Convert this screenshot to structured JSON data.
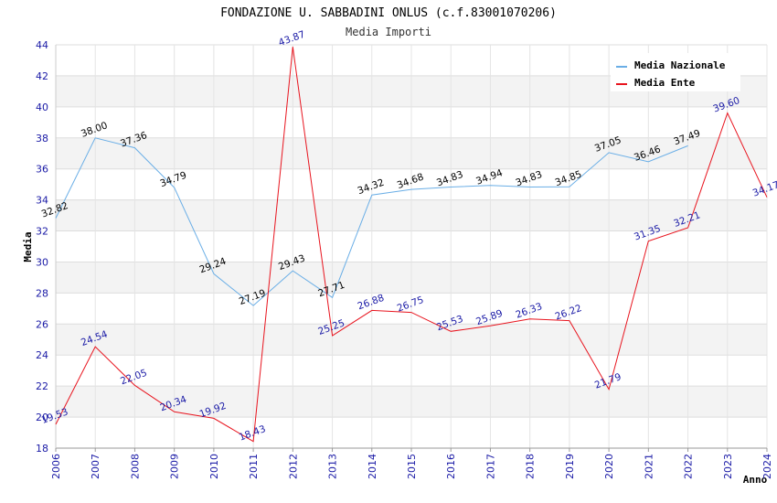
{
  "chart_data": {
    "type": "line",
    "title": "FONDAZIONE U. SABBADINI ONLUS (c.f.83001070206)",
    "subtitle": "Media Importi",
    "xlabel": "Anno",
    "ylabel": "Media",
    "ylim": [
      18,
      44
    ],
    "yticks": [
      "18",
      "20",
      "22",
      "24",
      "26",
      "28",
      "30",
      "32",
      "34",
      "36",
      "38",
      "40",
      "42",
      "44"
    ],
    "categories": [
      "2006",
      "2007",
      "2008",
      "2009",
      "2010",
      "2011",
      "2012",
      "2013",
      "2014",
      "2015",
      "2016",
      "2017",
      "2018",
      "2019",
      "2020",
      "2021",
      "2022",
      "2023",
      "2024"
    ],
    "legend_position": "top-right",
    "grid": true,
    "series": [
      {
        "name": "Media Nazionale",
        "color": "#6aaee6",
        "label_color": "#000000",
        "values": [
          32.82,
          38.0,
          37.36,
          34.79,
          29.24,
          27.19,
          29.43,
          27.71,
          34.32,
          34.68,
          34.83,
          34.94,
          34.83,
          34.85,
          37.05,
          36.46,
          37.49,
          null,
          null
        ],
        "labels": [
          "32.82",
          "38.00",
          "37.36",
          "34.79",
          "29.24",
          "27.19",
          "29.43",
          "27.71",
          "34.32",
          "34.68",
          "34.83",
          "34.94",
          "34.83",
          "34.85",
          "37.05",
          "36.46",
          "37.49",
          null,
          null
        ]
      },
      {
        "name": "Media Ente",
        "color": "#e8141e",
        "label_color": "#1a1aa6",
        "values": [
          19.53,
          24.54,
          22.05,
          20.34,
          19.92,
          18.43,
          43.87,
          25.25,
          26.88,
          26.75,
          25.53,
          25.89,
          26.33,
          26.22,
          21.79,
          31.35,
          32.21,
          39.6,
          34.17
        ],
        "labels": [
          "19.53",
          "24.54",
          "22.05",
          "20.34",
          "19.92",
          "18.43",
          "43.87",
          "25.25",
          "26.88",
          "26.75",
          "25.53",
          "25.89",
          "26.33",
          "26.22",
          "21.79",
          "31.35",
          "32.21",
          "39.60",
          "34.17"
        ]
      }
    ]
  }
}
